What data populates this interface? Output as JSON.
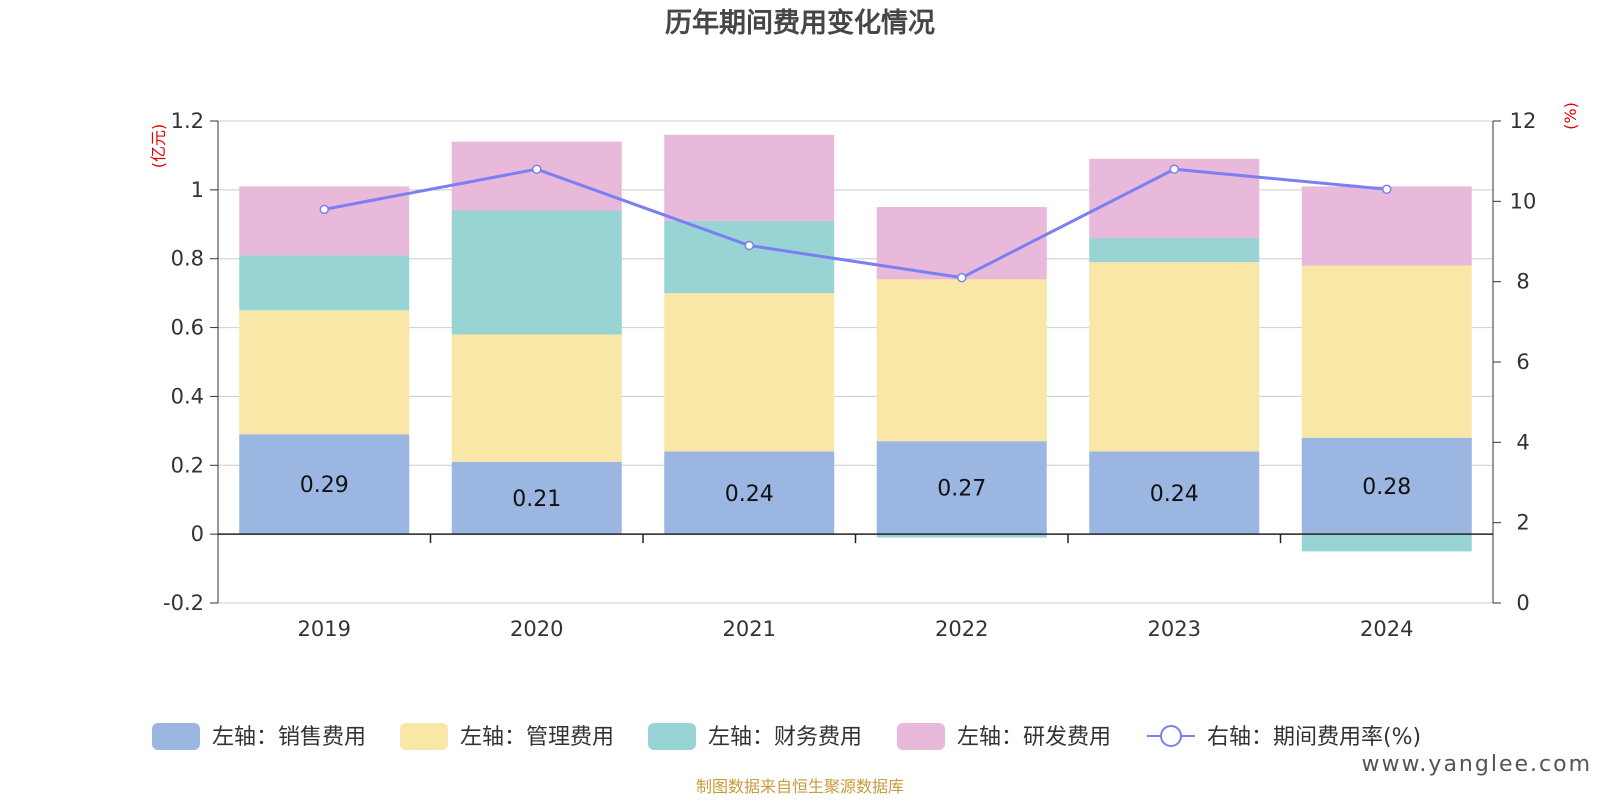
{
  "chart_data": {
    "type": "bar",
    "title": "历年期间费用变化情况",
    "categories": [
      "2019",
      "2020",
      "2021",
      "2022",
      "2023",
      "2024"
    ],
    "left_axis": {
      "unit": "(亿元)",
      "ylim": [
        -0.2,
        1.2
      ],
      "ticks": [
        "-0.2",
        "0",
        "0.2",
        "0.4",
        "0.6",
        "0.8",
        "1",
        "1.2"
      ]
    },
    "right_axis": {
      "unit": "(%)",
      "ylim": [
        0,
        12
      ],
      "ticks": [
        "0",
        "2",
        "4",
        "6",
        "8",
        "10",
        "12"
      ]
    },
    "series": [
      {
        "name": "左轴：销售费用",
        "color": "#9bb7e1",
        "values": [
          0.29,
          0.21,
          0.24,
          0.27,
          0.24,
          0.28
        ],
        "labels": [
          "0.29",
          "0.21",
          "0.24",
          "0.27",
          "0.24",
          "0.28"
        ]
      },
      {
        "name": "左轴：管理费用",
        "color": "#f9e7a7",
        "values": [
          0.36,
          0.37,
          0.46,
          0.47,
          0.55,
          0.5
        ]
      },
      {
        "name": "左轴：财务费用",
        "color": "#99d4d4",
        "values": [
          0.16,
          0.36,
          0.21,
          -0.01,
          0.07,
          -0.05
        ]
      },
      {
        "name": "左轴：研发费用",
        "color": "#e8b9da",
        "values": [
          0.2,
          0.2,
          0.25,
          0.21,
          0.23,
          0.23
        ]
      }
    ],
    "line": {
      "name": "右轴：期间费用率(%)",
      "color": "#7b7ff0",
      "values": [
        9.8,
        10.8,
        8.9,
        8.1,
        10.8,
        10.3
      ]
    },
    "grid": true,
    "legend_position": "bottom"
  },
  "footer": {
    "source": "制图数据来自恒生聚源数据库",
    "watermark": "www.yanglee.com"
  }
}
